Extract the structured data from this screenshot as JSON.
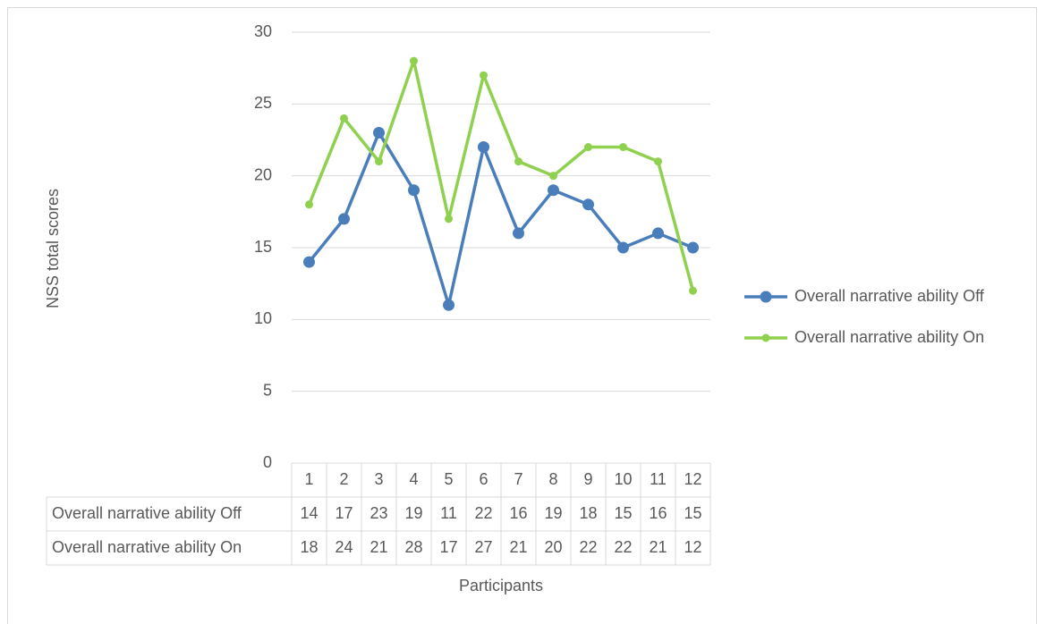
{
  "chart_data": {
    "type": "line",
    "y_label": "NSS total scores",
    "x_label": "Participants",
    "categories": [
      "1",
      "2",
      "3",
      "4",
      "5",
      "6",
      "7",
      "8",
      "9",
      "10",
      "11",
      "12"
    ],
    "series": [
      {
        "name": "Overall narrative ability Off",
        "color": "#4a7ebb",
        "values": [
          14,
          17,
          23,
          19,
          11,
          22,
          16,
          19,
          18,
          15,
          16,
          15
        ]
      },
      {
        "name": "Overall narrative ability On",
        "color": "#8fd14f",
        "values": [
          18,
          24,
          21,
          28,
          17,
          27,
          21,
          20,
          22,
          22,
          21,
          12
        ]
      }
    ],
    "ylim": [
      0,
      30
    ],
    "yticks": [
      0,
      5,
      10,
      15,
      20,
      25,
      30
    ],
    "grid": true,
    "legend": "right",
    "data_table": true
  }
}
